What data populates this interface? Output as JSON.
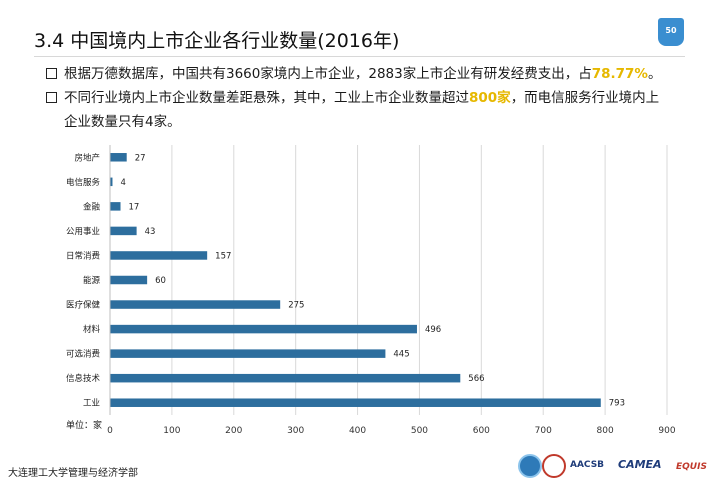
{
  "header": {
    "section_number": "3.4",
    "title": "中国境内上市企业各行业数量(2016年)",
    "page_number": "50"
  },
  "bullets": [
    {
      "pre": "根据万德数据库，中国共有3660家境内上市企业，2883家上市企业有研发经费支出，占",
      "highlight": "78.77%",
      "post": "。"
    },
    {
      "pre": "不同行业境内上市企业数量差距悬殊，其中，工业上市企业数量超过",
      "highlight": "800家",
      "post": "，而电信服务行业境内上",
      "line2": "企业数量只有4家。"
    }
  ],
  "chart_data": {
    "type": "bar",
    "orientation": "horizontal",
    "categories": [
      "房地产",
      "电信服务",
      "金融",
      "公用事业",
      "日常消费",
      "能源",
      "医疗保健",
      "材料",
      "可选消费",
      "信息技术",
      "工业"
    ],
    "values": [
      27,
      4,
      17,
      43,
      157,
      60,
      275,
      496,
      445,
      566,
      793
    ],
    "xlim": [
      0,
      900
    ],
    "xticks": [
      0,
      100,
      200,
      300,
      400,
      500,
      600,
      700,
      800,
      900
    ],
    "unit_label": "单位：家",
    "grid": true,
    "bar_color": "#2d6e9e"
  },
  "footer": {
    "institution": "大连理工大学管理与经济学部",
    "logos": [
      "AACSB",
      "CAMEA",
      "EQUIS"
    ]
  },
  "colors": {
    "highlight": "#e6b800",
    "accent": "#3a8ed0"
  }
}
